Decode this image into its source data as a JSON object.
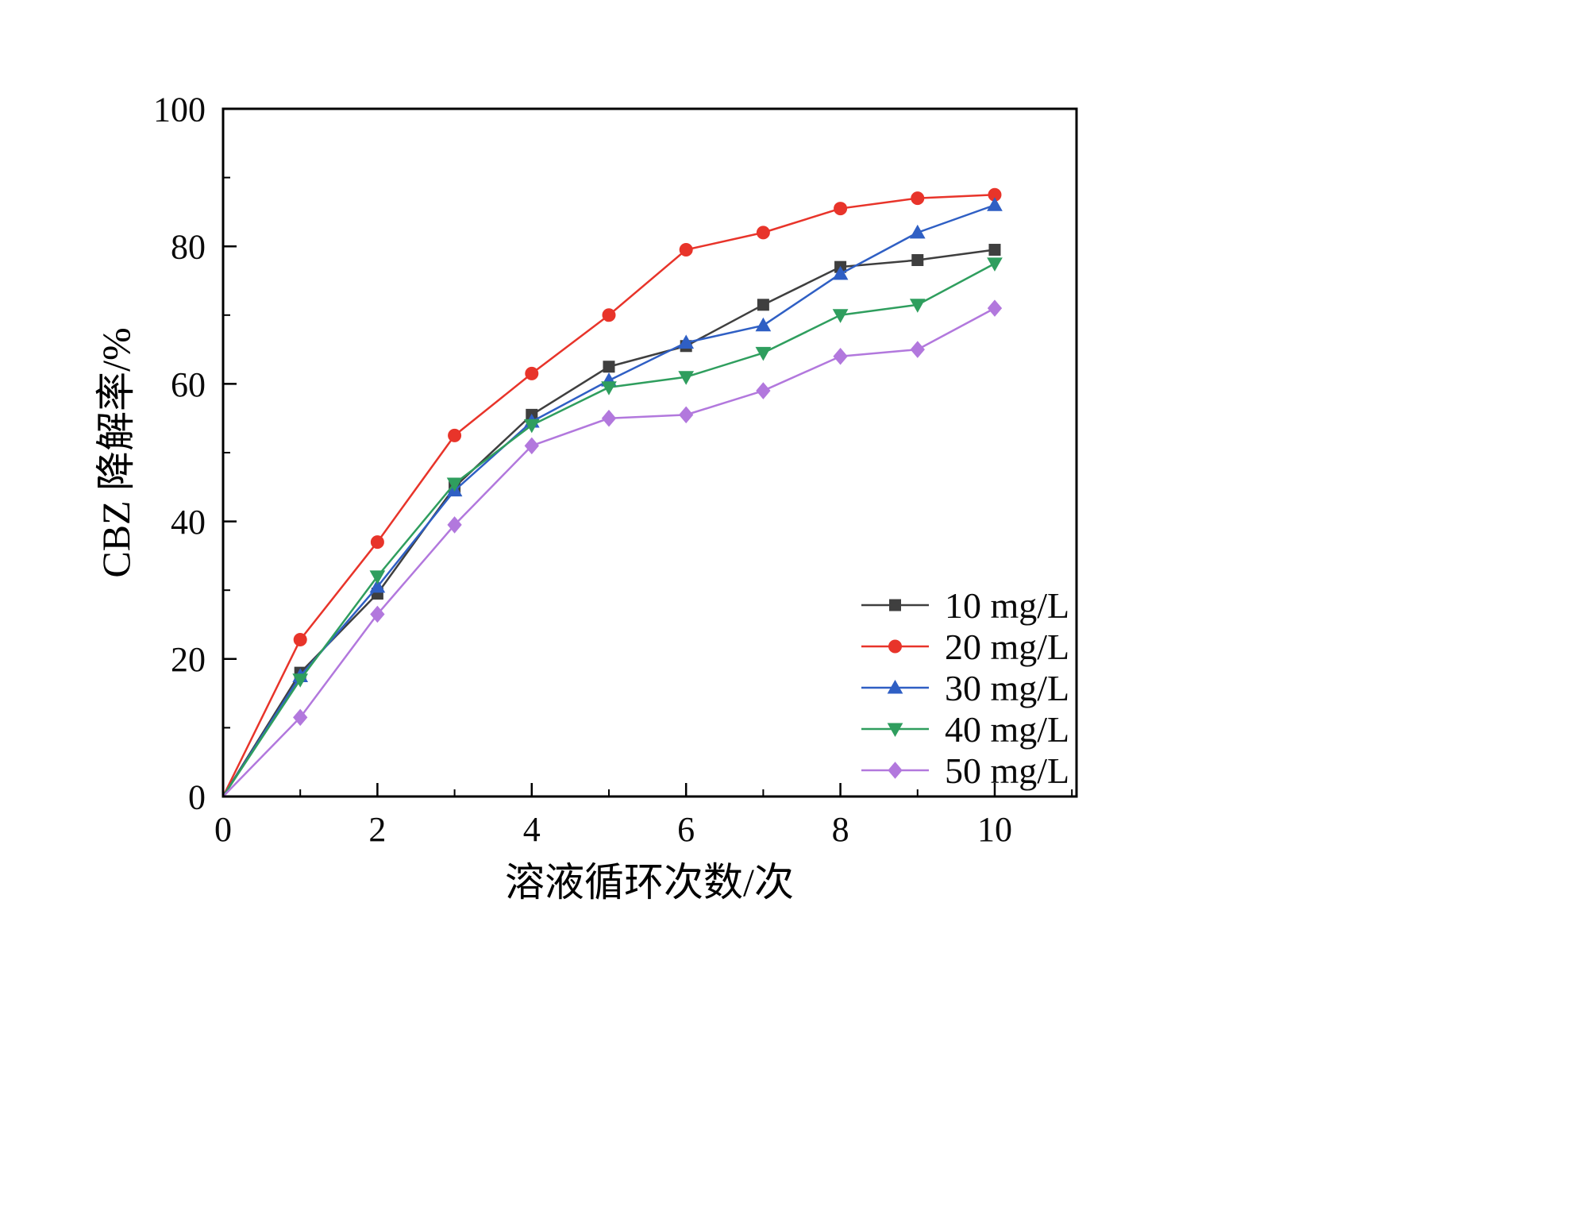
{
  "figure": {
    "background": "#ffffff",
    "axis_color": "#000000",
    "text_color": "#0a0a0a"
  },
  "chart_data": {
    "type": "line",
    "title": "",
    "xlabel": "溶液循环次数/次",
    "ylabel": "CBZ 降解率/%",
    "xlim": [
      0,
      11.06
    ],
    "ylim": [
      0,
      100
    ],
    "grid": false,
    "x_ticks": [
      0,
      2,
      4,
      6,
      8,
      10
    ],
    "x_tick_labels": [
      "0",
      "2",
      "4",
      "6",
      "8",
      "10"
    ],
    "x_minor_ticks": [
      1,
      3,
      5,
      7,
      9,
      11
    ],
    "y_ticks": [
      0,
      20,
      40,
      60,
      80,
      100
    ],
    "y_tick_labels": [
      "0",
      "20",
      "40",
      "60",
      "80",
      "100"
    ],
    "y_minor_ticks": [
      10,
      30,
      50,
      70,
      90
    ],
    "x": [
      0,
      1,
      2,
      3,
      4,
      5,
      6,
      7,
      8,
      9,
      10
    ],
    "series": [
      {
        "name": "10 mg/L",
        "color": "#3f3f3f",
        "marker": "square",
        "values": [
          0,
          18,
          29.5,
          45,
          55.5,
          62.5,
          65.5,
          71.5,
          77,
          78,
          79.5
        ]
      },
      {
        "name": "20 mg/L",
        "color": "#e8342a",
        "marker": "circle",
        "values": [
          0,
          22.8,
          37,
          52.5,
          61.5,
          70,
          79.5,
          82,
          85.5,
          87,
          87.5
        ]
      },
      {
        "name": "30 mg/L",
        "color": "#2f5fc4",
        "marker": "triangle-up",
        "values": [
          0,
          17.5,
          30.5,
          44.5,
          54.5,
          60.5,
          66,
          68.5,
          76,
          82,
          86
        ]
      },
      {
        "name": "40 mg/L",
        "color": "#2f9e5e",
        "marker": "triangle-down",
        "values": [
          0,
          17,
          32,
          45.5,
          54,
          59.5,
          61,
          64.5,
          70,
          71.5,
          77.5
        ]
      },
      {
        "name": "50 mg/L",
        "color": "#b278dd",
        "marker": "diamond",
        "values": [
          0,
          11.5,
          26.5,
          39.5,
          51,
          55,
          55.5,
          59,
          64,
          65,
          71
        ]
      }
    ],
    "legend": {
      "position": "bottom-right",
      "entries": [
        "10 mg/L",
        "20 mg/L",
        "30 mg/L",
        "40 mg/L",
        "50 mg/L"
      ]
    }
  }
}
